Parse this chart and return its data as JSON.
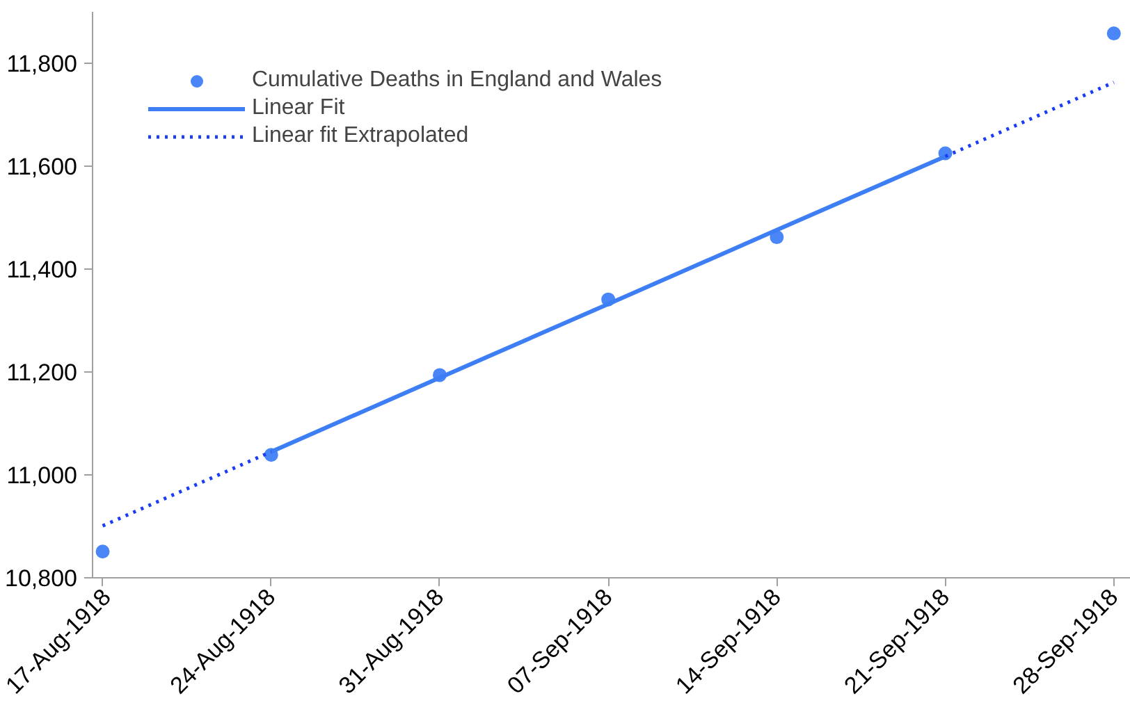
{
  "chart_data": {
    "type": "scatter",
    "categories": [
      "17-Aug-1918",
      "24-Aug-1918",
      "31-Aug-1918",
      "07-Sep-1918",
      "14-Sep-1918",
      "21-Sep-1918",
      "28-Sep-1918"
    ],
    "series": [
      {
        "name": "Cumulative Deaths in England and Wales",
        "marker": "circle",
        "color": "#4a86f7",
        "values": [
          10851,
          11039,
          11194,
          11341,
          11462,
          11625,
          11858
        ]
      },
      {
        "name": "Linear Fit",
        "type": "line",
        "marker": "none",
        "line_style": "solid",
        "color": "#3d7ef5",
        "values": [
          null,
          11045,
          11189,
          11332,
          11476,
          11619,
          null
        ]
      },
      {
        "name": "Linear fit Extrapolated",
        "type": "line",
        "marker": "none",
        "line_style": "dotted",
        "color": "#1a3cf5",
        "values": [
          10901,
          11045,
          null,
          null,
          null,
          11619,
          11763
        ]
      }
    ],
    "ylim": [
      10800,
      11900
    ],
    "yticks": [
      {
        "value": 10800,
        "label": "10,800"
      },
      {
        "value": 11000,
        "label": "11,000"
      },
      {
        "value": 11200,
        "label": "11,200"
      },
      {
        "value": 11400,
        "label": "11,400"
      },
      {
        "value": 11600,
        "label": "11,600"
      },
      {
        "value": 11800,
        "label": "11,800"
      }
    ],
    "grid": false,
    "legend": "top left"
  }
}
